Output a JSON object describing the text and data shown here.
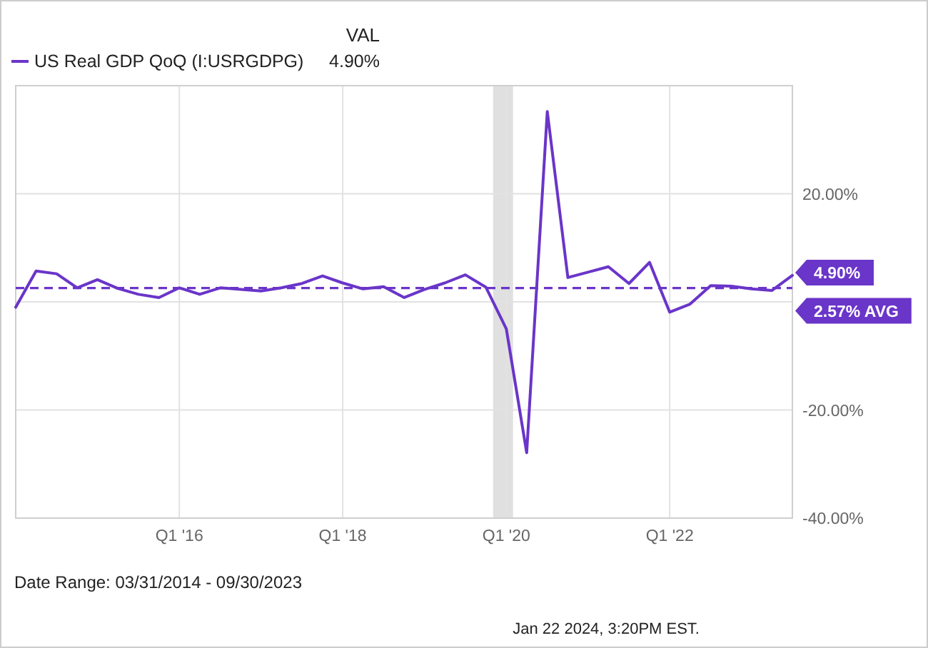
{
  "chart_data": {
    "type": "line",
    "x": [
      "2014-03-31",
      "2014-06-30",
      "2014-09-30",
      "2014-12-31",
      "2015-03-31",
      "2015-06-30",
      "2015-09-30",
      "2015-12-31",
      "2016-03-31",
      "2016-06-30",
      "2016-09-30",
      "2016-12-31",
      "2017-03-31",
      "2017-06-30",
      "2017-09-30",
      "2017-12-31",
      "2018-03-31",
      "2018-06-30",
      "2018-09-30",
      "2018-12-31",
      "2019-03-31",
      "2019-06-30",
      "2019-09-30",
      "2019-12-31",
      "2020-03-31",
      "2020-06-30",
      "2020-09-30",
      "2020-12-31",
      "2021-03-31",
      "2021-06-30",
      "2021-09-30",
      "2021-12-31",
      "2022-03-31",
      "2022-06-30",
      "2022-09-30",
      "2022-12-31",
      "2023-03-31",
      "2023-06-30",
      "2023-09-30"
    ],
    "series": [
      {
        "name": "US Real GDP QoQ (I:USRGDPG)",
        "color": "#6a35c9",
        "values": [
          -1,
          5.7,
          5.2,
          2.6,
          4.1,
          2.5,
          1.4,
          0.8,
          2.6,
          1.4,
          2.6,
          2.3,
          2.0,
          2.6,
          3.4,
          4.8,
          3.5,
          2.4,
          2.8,
          0.8,
          2.3,
          3.5,
          5.0,
          2.7,
          -5.0,
          -27.9,
          35.2,
          4.5,
          5.5,
          6.5,
          3.4,
          7.3,
          -1.9,
          -0.4,
          3.0,
          2.9,
          2.4,
          2.1,
          4.9
        ],
        "value_labels": [
          null,
          null,
          null,
          null,
          null,
          null,
          null,
          null,
          null,
          null,
          null,
          null,
          null,
          null,
          null,
          null,
          null,
          null,
          null,
          null,
          null,
          null,
          null,
          null,
          null,
          null,
          null,
          null,
          null,
          null,
          null,
          null,
          null,
          null,
          null,
          null,
          null,
          null,
          "4.90%"
        ]
      }
    ],
    "xlim": [
      "2014-03-31",
      "2023-09-30"
    ],
    "xticks": [
      {
        "value": "2016-03-31",
        "label": "Q1 '16"
      },
      {
        "value": "2018-03-31",
        "label": "Q1 '18"
      },
      {
        "value": "2020-03-31",
        "label": "Q1 '20"
      },
      {
        "value": "2022-03-31",
        "label": "Q1 '22"
      }
    ],
    "ylim": [
      -40,
      40
    ],
    "yticks": [
      {
        "value": -40,
        "label": "-40.00%"
      },
      {
        "value": -20,
        "label": "-20.00%"
      },
      {
        "value": 0,
        "label": null
      },
      {
        "value": 20,
        "label": "20.00%"
      },
      {
        "value": 40,
        "label": null
      }
    ],
    "grid": true,
    "legend": "top left",
    "legend_title": "VAL",
    "ref_lines": [
      {
        "axis": "y",
        "value": 2.57,
        "label": "2.57% AVG",
        "color": "#6a35c9",
        "line_style": "dashed"
      }
    ],
    "bands": [
      {
        "axis": "x",
        "from": "2020-02-01",
        "to": "2020-04-30",
        "color": "#e0e0e0"
      }
    ],
    "annotations": [
      "4.90%",
      "Date Range: 03/31/2014 - 09/30/2023",
      "Jan 22 2024, 3:20PM EST."
    ]
  }
}
